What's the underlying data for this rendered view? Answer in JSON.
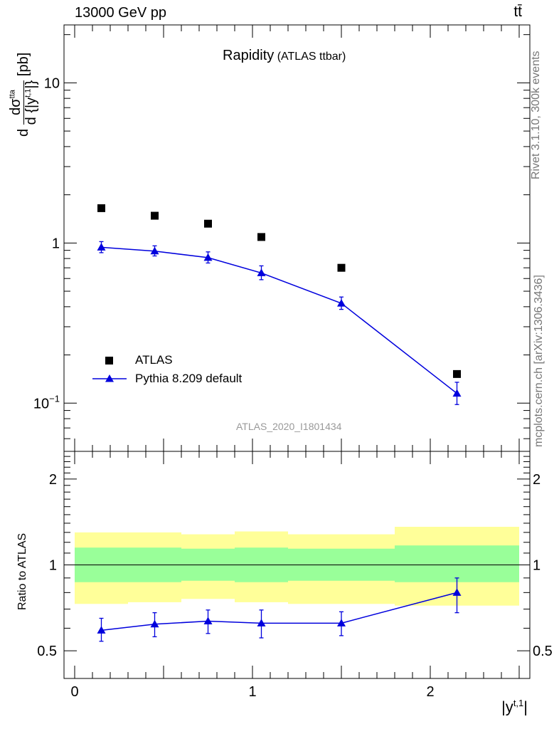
{
  "header": {
    "left": "13000 GeV pp",
    "right": "tt̄"
  },
  "title": {
    "main": "Rapidity",
    "sub": "(ATLAS ttbar)"
  },
  "ylabel_top": {
    "pre": "d",
    "num": "dσ",
    "num_sup": "tta",
    "den": "d {|y",
    "den_sup": "t,1",
    "den_post": "|}",
    "unit": "[pb]"
  },
  "ylabel_bottom": "Ratio to ATLAS",
  "xlabel": {
    "main": "|y",
    "sup": "t,1",
    "post": "|"
  },
  "watermark": "ATLAS_2020_I1801434",
  "side_text": {
    "rivet": "Rivet 3.1.10,  300k events",
    "mc": "mcplots.cern.ch [arXiv:1306.3436]"
  },
  "legend": [
    {
      "label": "ATLAS",
      "marker": "square",
      "color": "#000000"
    },
    {
      "label": "Pythia 8.209 default",
      "marker": "triangle",
      "color": "#0000dd"
    }
  ],
  "top_ticks": [
    {
      "value": 0.1,
      "label": "10",
      "sup": "−1"
    },
    {
      "value": 1,
      "label": "1",
      "sup": ""
    },
    {
      "value": 10,
      "label": "10",
      "sup": ""
    }
  ],
  "ratio_ticks": [
    {
      "value": 0.5,
      "label": "0.5"
    },
    {
      "value": 1,
      "label": "1"
    },
    {
      "value": 2,
      "label": "2"
    }
  ],
  "x_ticks": [
    {
      "value": 0,
      "label": "0"
    },
    {
      "value": 1,
      "label": "1"
    },
    {
      "value": 2,
      "label": "2"
    }
  ],
  "chart_data": {
    "type": "scatter",
    "xlim": [
      -0.06,
      2.56
    ],
    "ylim_top": [
      0.05,
      23
    ],
    "ylim_ratio": [
      0.4,
      2.5
    ],
    "y_scale": "log",
    "bins": [
      [
        0.0,
        0.3
      ],
      [
        0.3,
        0.6
      ],
      [
        0.6,
        0.9
      ],
      [
        0.9,
        1.2
      ],
      [
        1.2,
        1.8
      ],
      [
        1.8,
        2.5
      ]
    ],
    "x": [
      0.15,
      0.45,
      0.75,
      1.05,
      1.5,
      2.15
    ],
    "series": [
      {
        "name": "ATLAS",
        "values": [
          1.65,
          1.48,
          1.32,
          1.09,
          0.7,
          0.152
        ]
      },
      {
        "name": "Pythia 8.209 default",
        "values": [
          0.94,
          0.89,
          0.81,
          0.65,
          0.42,
          0.115
        ],
        "err_up": [
          0.08,
          0.07,
          0.07,
          0.07,
          0.04,
          0.02
        ],
        "err_down": [
          0.07,
          0.06,
          0.06,
          0.06,
          0.035,
          0.017
        ]
      }
    ],
    "ratio": {
      "values": [
        0.59,
        0.62,
        0.635,
        0.625,
        0.625,
        0.8
      ],
      "err_up": [
        0.06,
        0.06,
        0.06,
        0.07,
        0.06,
        0.1
      ],
      "err_down": [
        0.05,
        0.06,
        0.06,
        0.07,
        0.06,
        0.12
      ],
      "band_inner": [
        [
          0.87,
          1.15
        ],
        [
          0.87,
          1.15
        ],
        [
          0.88,
          1.14
        ],
        [
          0.87,
          1.15
        ],
        [
          0.88,
          1.14
        ],
        [
          0.87,
          1.17
        ]
      ],
      "band_outer": [
        [
          0.73,
          1.3
        ],
        [
          0.74,
          1.3
        ],
        [
          0.76,
          1.28
        ],
        [
          0.74,
          1.31
        ],
        [
          0.73,
          1.28
        ],
        [
          0.72,
          1.36
        ]
      ],
      "band_inner_color": "#99ff99",
      "band_outer_color": "#ffff99"
    }
  }
}
